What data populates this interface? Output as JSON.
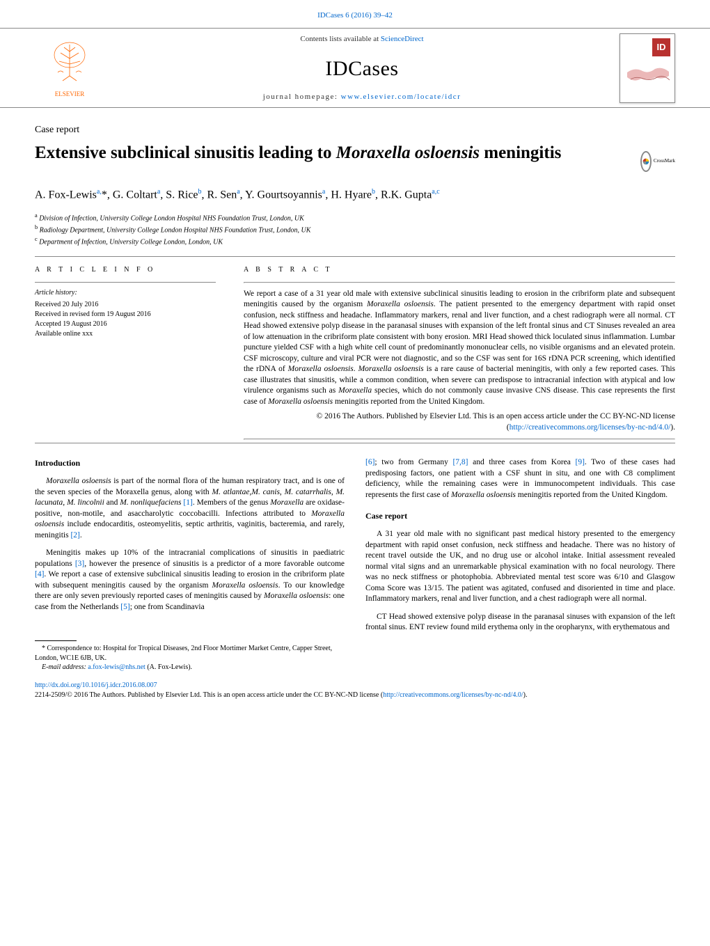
{
  "header": {
    "journal_ref": "IDCases 6 (2016) 39–42",
    "contents_prefix": "Contents lists available at ",
    "contents_link": "ScienceDirect",
    "journal_name": "IDCases",
    "homepage_prefix": "journal homepage: ",
    "homepage_link": "www.elsevier.com/locate/idcr",
    "elsevier_label": "ELSEVIER",
    "cover_badge": "ID"
  },
  "article": {
    "type": "Case report",
    "title_pre": "Extensive subclinical sinusitis leading to ",
    "title_organism": "Moraxella osloensis",
    "title_post": " meningitis",
    "crossmark_label": "CrossMark",
    "authors_html": "A. Fox-Lewis<sup>a,</sup>*, G. Coltart<sup>a</sup>, S. Rice<sup>b</sup>, R. Sen<sup>a</sup>, Y. Gourtsoyannis<sup>a</sup>, H. Hyare<sup>b</sup>, R.K. Gupta<sup>a,c</sup>",
    "affiliations": [
      {
        "sup": "a",
        "text": "Division of Infection, University College London Hospital NHS Foundation Trust, London, UK"
      },
      {
        "sup": "b",
        "text": "Radiology Department, University College London Hospital NHS Foundation Trust, London, UK"
      },
      {
        "sup": "c",
        "text": "Department of Infection, University College London, London, UK"
      }
    ]
  },
  "info": {
    "head": "A R T I C L E   I N F O",
    "history_label": "Article history:",
    "history": [
      "Received 20 July 2016",
      "Received in revised form 19 August 2016",
      "Accepted 19 August 2016",
      "Available online xxx"
    ]
  },
  "abstract": {
    "head": "A B S T R A C T",
    "text_html": "We report a case of a 31 year old male with extensive subclinical sinusitis leading to erosion in the cribriform plate and subsequent meningitis caused by the organism <em>Moraxella osloensis</em>. The patient presented to the emergency department with rapid onset confusion, neck stiffness and headache. Inflammatory markers, renal and liver function, and a chest radiograph were all normal. CT Head showed extensive polyp disease in the paranasal sinuses with expansion of the left frontal sinus and CT Sinuses revealed an area of low attenuation in the cribriform plate consistent with bony erosion. MRI Head showed thick loculated sinus inflammation. Lumbar puncture yielded CSF with a high white cell count of predominantly mononuclear cells, no visible organisms and an elevated protein. CSF microscopy, culture and viral PCR were not diagnostic, and so the CSF was sent for 16S rDNA PCR screening, which identified the rDNA of <em>Moraxella osloensis</em>. <em>Moraxella osloensis</em> is a rare cause of bacterial meningitis, with only a few reported cases. This case illustrates that sinusitis, while a common condition, when severe can predispose to intracranial infection with atypical and low virulence organisms such as <em>Moraxella</em> species, which do not commonly cause invasive CNS disease. This case represents the first case of <em>Moraxella osloensis</em> meningitis reported from the United Kingdom.",
    "license_pre": "© 2016 The Authors. Published by Elsevier Ltd. This is an open access article under the CC BY-NC-ND license (",
    "license_link": "http://creativecommons.org/licenses/by-nc-nd/4.0/",
    "license_post": ")."
  },
  "body": {
    "intro_head": "Introduction",
    "intro_p1_html": "<em>Moraxella osloensis</em> is part of the normal flora of the human respiratory tract, and is one of the seven species of the Moraxella genus, along with <em>M. atlantae</em>,<em>M. canis</em>, <em>M. catarrhalis</em>, <em>M. lacunata</em>, <em>M. lincolnii</em> and <em>M. nonliquefaciens</em> <a>[1]</a>. Members of the genus <em>Moraxella</em> are oxidase-positive, non-motile, and asaccharolytic coccobacilli. Infections attributed to <em>Moraxella osloensis</em> include endocarditis, osteomyelitis, septic arthritis, vaginitis, bacteremia, and rarely, meningitis <a>[2]</a>.",
    "intro_p2_html": "Meningitis makes up 10% of the intracranial complications of sinusitis in paediatric populations <a>[3]</a>, however the presence of sinusitis is a predictor of a more favorable outcome <a>[4]</a>. We report a case of extensive subclinical sinusitis leading to erosion in the cribriform plate with subsequent meningitis caused by the organism <em>Moraxella osloensis</em>. To our knowledge there are only seven previously reported cases of meningitis caused by <em>Moraxella osloensis</em>: one case from the Netherlands <a>[5]</a>; one from Scandinavia",
    "col2_p1_html": "<a>[6]</a>; two from Germany <a>[7,8]</a> and three cases from Korea <a>[9]</a>. Two of these cases had predisposing factors, one patient with a CSF shunt in situ, and one with C8 compliment deficiency, while the remaining cases were in immunocompetent individuals. This case represents the first case of <em>Moraxella osloensis</em> meningitis reported from the United Kingdom.",
    "case_head": "Case report",
    "case_p1_html": "A 31 year old male with no significant past medical history presented to the emergency department with rapid onset confusion, neck stiffness and headache. There was no history of recent travel outside the UK, and no drug use or alcohol intake. Initial assessment revealed normal vital signs and an unremarkable physical examination with no focal neurology. There was no neck stiffness or photophobia. Abbreviated mental test score was 6/10 and Glasgow Coma Score was 13/15. The patient was agitated, confused and disoriented in time and place. Inflammatory markers, renal and liver function, and a chest radiograph were all normal.",
    "case_p2_html": "CT Head showed extensive polyp disease in the paranasal sinuses with expansion of the left frontal sinus. ENT review found mild erythema only in the oropharynx, with erythematous and"
  },
  "correspondence": {
    "corr_html": "* Correspondence to: Hospital for Tropical Diseases, 2nd Floor Mortimer Market Centre, Capper Street, London, WC1E 6JB, UK.",
    "email_label": "E-mail address: ",
    "email_link": "a.fox-lewis@nhs.net",
    "email_name": " (A.  Fox-Lewis)."
  },
  "footer": {
    "doi_link": "http://dx.doi.org/10.1016/j.idcr.2016.08.007",
    "copyright_pre": "2214-2509/© 2016 The Authors. Published by Elsevier Ltd. This is an open access article under the CC BY-NC-ND license (",
    "copyright_link": "http://creativecommons.org/licenses/by-nc-nd/4.0/",
    "copyright_post": ")."
  },
  "colors": {
    "link": "#0066cc",
    "elsevier_orange": "#ff6600",
    "id_red": "#b8312f",
    "rule": "#888888"
  }
}
